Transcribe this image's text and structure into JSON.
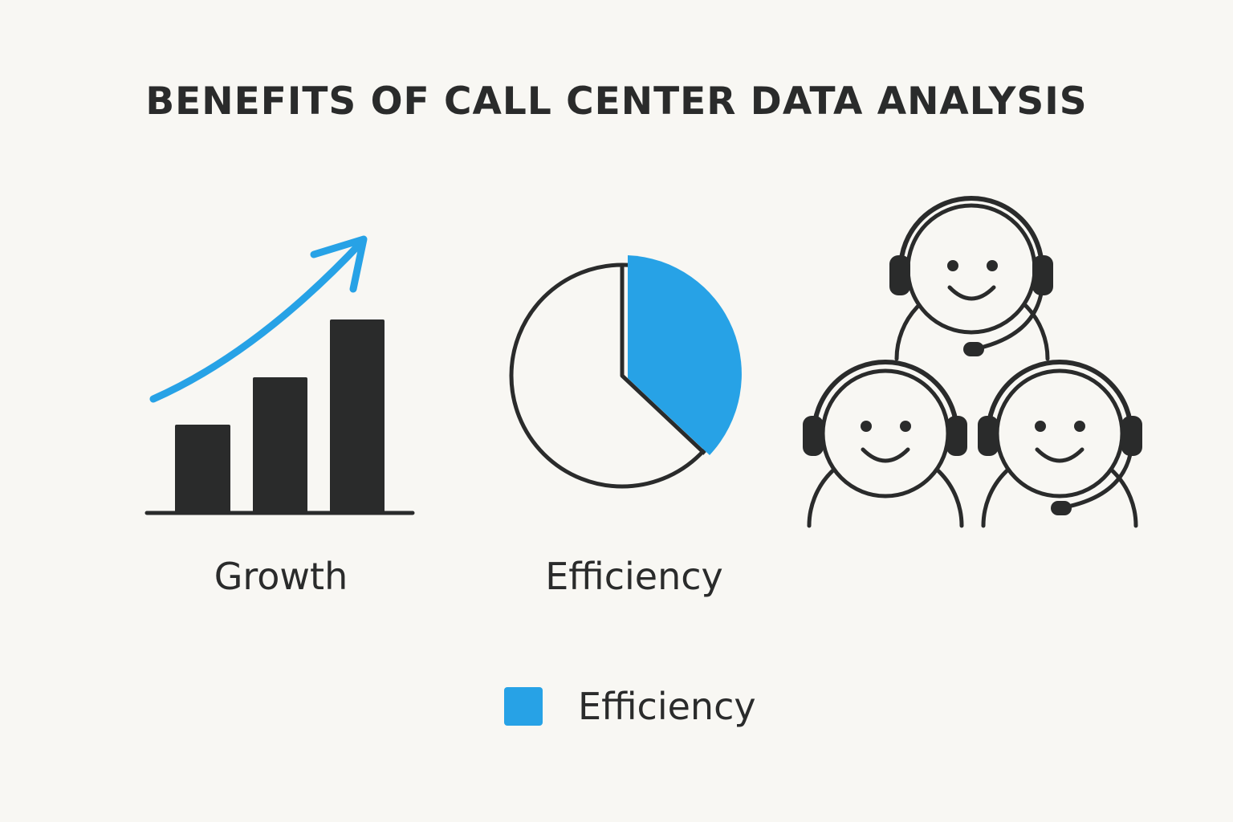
{
  "title": "BENEFITS OF CALL CENTER DATA ANALYSIS",
  "panels": [
    {
      "label": "Growth",
      "icon": "bar-chart-growth-icon"
    },
    {
      "label": "Efficiency",
      "icon": "pie-chart-icon"
    },
    {
      "label": "",
      "icon": "headset-agents-icon"
    }
  ],
  "legend": {
    "label": "Efficiency"
  },
  "colors": {
    "background": "#f8f7f3",
    "ink": "#2a2b2b",
    "accent": "#27a2e6"
  }
}
